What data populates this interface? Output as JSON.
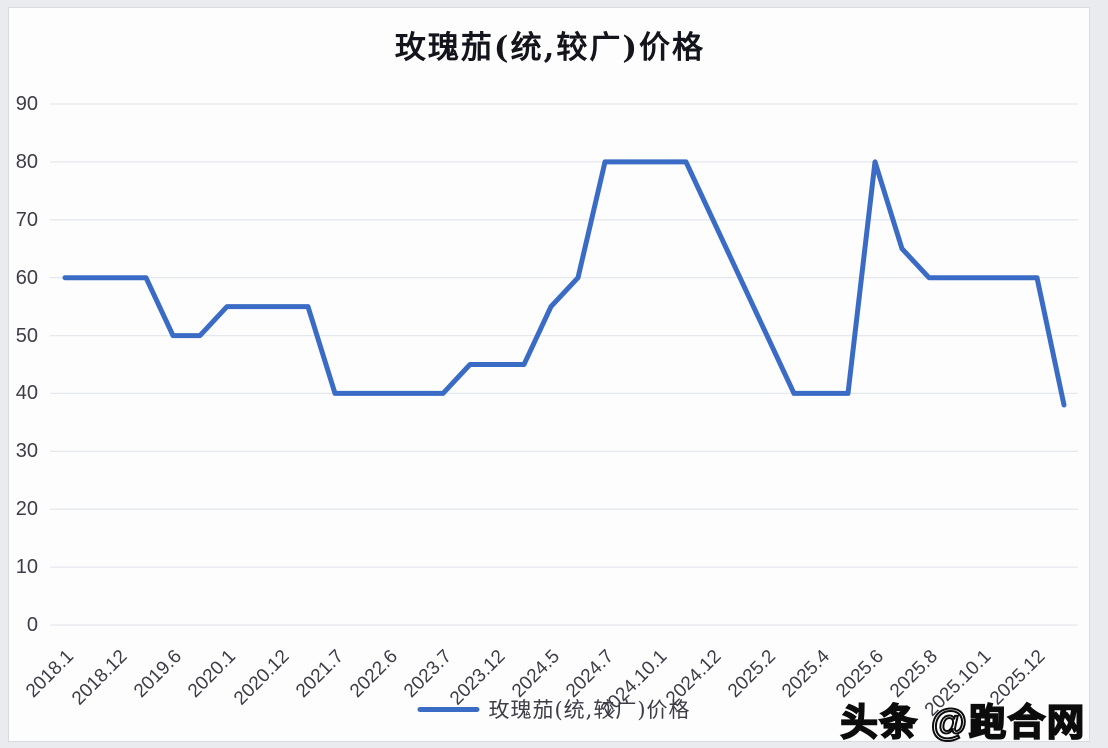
{
  "title": "玫瑰茄(统,较广)价格",
  "legend": {
    "label": "玫瑰茄(统,较广)价格"
  },
  "watermark": "头条 @跑合网",
  "colors": {
    "line": "#3b6cc5",
    "grid": "#e5e8ed",
    "text": "#3d3d47",
    "title": "#14141c",
    "card_bg": "#fdfdfe",
    "card_border": "#d8dbe0"
  },
  "chart_data": {
    "type": "line",
    "title": "玫瑰茄(统,较广)价格",
    "xlabel": "",
    "ylabel": "",
    "ylim": [
      0,
      90
    ],
    "grid": "horizontal",
    "legend_position": "bottom-center",
    "y_ticks": [
      90,
      80,
      70,
      60,
      50,
      40,
      30,
      20,
      10,
      0
    ],
    "x_tick_labels": [
      "2018.1",
      "2018.12",
      "2019.6",
      "2020.1",
      "2020.12",
      "2021.7",
      "2022.6",
      "2023.7",
      "2023.12",
      "2024.5",
      "2024.7",
      "2024.10.1",
      "2024.12",
      "2025.2",
      "2025.4",
      "2025.6",
      "2025.8",
      "2025.10.1",
      "2025.12"
    ],
    "x_labels_every": 2,
    "series": [
      {
        "name": "玫瑰茄(统,较广)价格",
        "values": [
          60,
          60,
          60,
          60,
          50,
          50,
          55,
          55,
          55,
          55,
          40,
          40,
          40,
          40,
          40,
          45,
          45,
          45,
          55,
          60,
          80,
          80,
          80,
          80,
          70,
          60,
          50,
          40,
          40,
          40,
          80,
          65,
          60,
          60,
          60,
          60,
          60,
          38
        ]
      }
    ],
    "labeled_point_values": {
      "2018.1": 60,
      "2018.12": 60,
      "2019.6": 50,
      "2020.1": 55,
      "2020.12": 55,
      "2021.7": 40,
      "2022.6": 40,
      "2023.7": 40,
      "2023.12": 45,
      "2024.5": 55,
      "2024.7": 80,
      "2024.10.1": 80,
      "2024.12": 70,
      "2025.2": 50,
      "2025.4": 40,
      "2025.6": 80,
      "2025.8": 60,
      "2025.10.1": 60,
      "2025.12": 60
    }
  }
}
